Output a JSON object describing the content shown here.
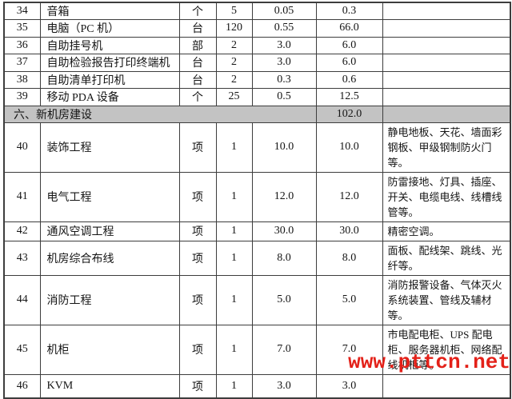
{
  "table": {
    "rows": [
      {
        "no": "34",
        "name": "音箱",
        "unit": "个",
        "qty": "5",
        "price": "0.05",
        "total": "0.3",
        "remark": ""
      },
      {
        "no": "35",
        "name": "电脑（PC 机）",
        "unit": "台",
        "qty": "120",
        "price": "0.55",
        "total": "66.0",
        "remark": ""
      },
      {
        "no": "36",
        "name": "自助挂号机",
        "unit": "部",
        "qty": "2",
        "price": "3.0",
        "total": "6.0",
        "remark": ""
      },
      {
        "no": "37",
        "name": "自助检验报告打印终端机",
        "unit": "台",
        "qty": "2",
        "price": "3.0",
        "total": "6.0",
        "remark": ""
      },
      {
        "no": "38",
        "name": "自助清单打印机",
        "unit": "台",
        "qty": "2",
        "price": "0.3",
        "total": "0.6",
        "remark": ""
      },
      {
        "no": "39",
        "name": "移动 PDA 设备",
        "unit": "个",
        "qty": "25",
        "price": "0.5",
        "total": "12.5",
        "remark": ""
      },
      {
        "type": "section",
        "label": "六、新机房建设",
        "total": "102.0"
      },
      {
        "no": "40",
        "name": "装饰工程",
        "unit": "项",
        "qty": "1",
        "price": "10.0",
        "total": "10.0",
        "remark": "静电地板、天花、墙面彩钢板、甲级钢制防火门等。"
      },
      {
        "no": "41",
        "name": "电气工程",
        "unit": "项",
        "qty": "1",
        "price": "12.0",
        "total": "12.0",
        "remark": "防雷接地、灯具、插座、开关、电缆电线、线槽线管等。"
      },
      {
        "no": "42",
        "name": "通风空调工程",
        "unit": "项",
        "qty": "1",
        "price": "30.0",
        "total": "30.0",
        "remark": "精密空调。"
      },
      {
        "no": "43",
        "name": "机房综合布线",
        "unit": "项",
        "qty": "1",
        "price": "8.0",
        "total": "8.0",
        "remark": "面板、配线架、跳线、光纤等。"
      },
      {
        "no": "44",
        "name": "消防工程",
        "unit": "项",
        "qty": "1",
        "price": "5.0",
        "total": "5.0",
        "remark": "消防报警设备、气体灭火系统装置、管线及辅材等。"
      },
      {
        "no": "45",
        "name": "机柜",
        "unit": "项",
        "qty": "1",
        "price": "7.0",
        "total": "7.0",
        "remark": "市电配电柜、UPS 配电柜、服务器机柜、网络配线机柜等。"
      },
      {
        "no": "46",
        "name": "KVM",
        "unit": "项",
        "qty": "1",
        "price": "3.0",
        "total": "3.0",
        "remark": ""
      }
    ]
  },
  "watermark": {
    "text": "www.pttcn.net",
    "color": "#e32119"
  },
  "colors": {
    "section_bg": "#c3c3c3",
    "border": "#3d3d3d"
  }
}
